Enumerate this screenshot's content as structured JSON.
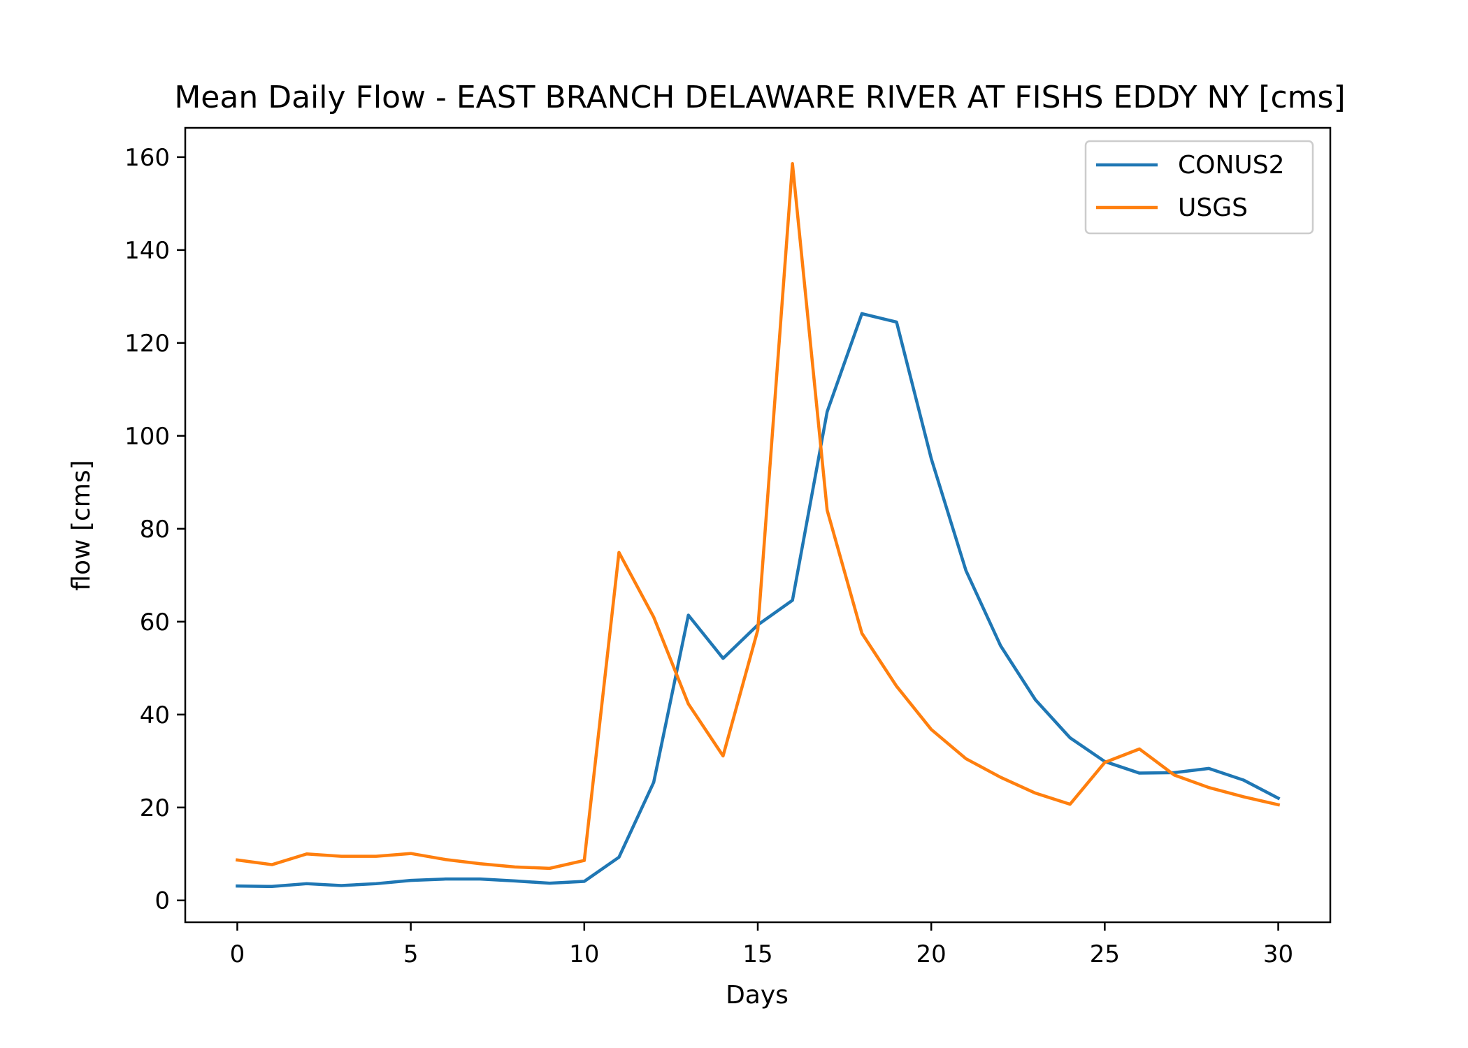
{
  "chart_data": {
    "type": "line",
    "title": "Mean Daily Flow - EAST BRANCH DELAWARE RIVER AT FISHS EDDY NY [cms]",
    "xlabel": "Days",
    "ylabel": "flow [cms]",
    "xlim": [
      -1.5,
      31.5
    ],
    "ylim": [
      -4.7,
      166.3
    ],
    "xticks": [
      0,
      5,
      10,
      15,
      20,
      25,
      30
    ],
    "yticks": [
      0,
      20,
      40,
      60,
      80,
      100,
      120,
      140,
      160
    ],
    "grid": false,
    "legend_position": "top-right",
    "x": [
      0,
      1,
      2,
      3,
      4,
      5,
      6,
      7,
      8,
      9,
      10,
      11,
      12,
      13,
      14,
      15,
      16,
      17,
      18,
      19,
      20,
      21,
      22,
      23,
      24,
      25,
      26,
      27,
      28,
      29,
      30
    ],
    "series": [
      {
        "name": "CONUS2",
        "color": "#1f77b4",
        "values": [
          3.1,
          3.0,
          3.6,
          3.2,
          3.6,
          4.3,
          4.6,
          4.6,
          4.2,
          3.7,
          4.1,
          9.3,
          25.4,
          61.4,
          52.1,
          59.3,
          64.6,
          105.2,
          126.3,
          124.5,
          95.1,
          71.0,
          54.8,
          43.2,
          35.0,
          29.9,
          27.4,
          27.5,
          28.4,
          25.9,
          22.0
        ]
      },
      {
        "name": "USGS",
        "color": "#ff7f0e",
        "values": [
          8.7,
          7.7,
          10.0,
          9.5,
          9.5,
          10.1,
          8.8,
          7.9,
          7.2,
          6.9,
          8.6,
          74.9,
          61.0,
          42.3,
          31.1,
          58.2,
          158.6,
          84.0,
          57.5,
          46.1,
          36.8,
          30.5,
          26.5,
          23.1,
          20.7,
          29.7,
          32.6,
          27.0,
          24.3,
          22.3,
          20.6
        ]
      }
    ]
  }
}
